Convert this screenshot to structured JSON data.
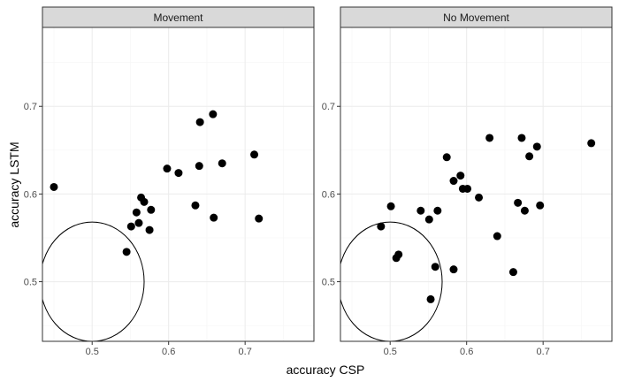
{
  "chart_data": {
    "type": "scatter",
    "xlabel": "accuracy CSP",
    "ylabel": "accuracy LSTM",
    "xlim": [
      0.435,
      0.79
    ],
    "ylim": [
      0.432,
      0.79
    ],
    "xticks": [
      0.5,
      0.6,
      0.7
    ],
    "yticks": [
      0.5,
      0.6,
      0.7
    ],
    "tick_labels": [
      "0.5",
      "0.6",
      "0.7"
    ],
    "grid": true,
    "facets": [
      {
        "label": "Movement",
        "points": [
          {
            "x": 0.45,
            "y": 0.608
          },
          {
            "x": 0.545,
            "y": 0.534
          },
          {
            "x": 0.551,
            "y": 0.563
          },
          {
            "x": 0.558,
            "y": 0.579
          },
          {
            "x": 0.561,
            "y": 0.567
          },
          {
            "x": 0.564,
            "y": 0.596
          },
          {
            "x": 0.568,
            "y": 0.591
          },
          {
            "x": 0.575,
            "y": 0.559
          },
          {
            "x": 0.577,
            "y": 0.582
          },
          {
            "x": 0.598,
            "y": 0.629
          },
          {
            "x": 0.613,
            "y": 0.624
          },
          {
            "x": 0.635,
            "y": 0.587
          },
          {
            "x": 0.64,
            "y": 0.632
          },
          {
            "x": 0.641,
            "y": 0.682
          },
          {
            "x": 0.658,
            "y": 0.691
          },
          {
            "x": 0.659,
            "y": 0.573
          },
          {
            "x": 0.67,
            "y": 0.635
          },
          {
            "x": 0.712,
            "y": 0.645
          },
          {
            "x": 0.718,
            "y": 0.572
          }
        ]
      },
      {
        "label": "No Movement",
        "points": [
          {
            "x": 0.488,
            "y": 0.563
          },
          {
            "x": 0.501,
            "y": 0.586
          },
          {
            "x": 0.508,
            "y": 0.527
          },
          {
            "x": 0.511,
            "y": 0.531
          },
          {
            "x": 0.54,
            "y": 0.581
          },
          {
            "x": 0.551,
            "y": 0.571
          },
          {
            "x": 0.553,
            "y": 0.48
          },
          {
            "x": 0.559,
            "y": 0.517
          },
          {
            "x": 0.562,
            "y": 0.581
          },
          {
            "x": 0.574,
            "y": 0.642
          },
          {
            "x": 0.583,
            "y": 0.615
          },
          {
            "x": 0.583,
            "y": 0.514
          },
          {
            "x": 0.592,
            "y": 0.621
          },
          {
            "x": 0.595,
            "y": 0.606
          },
          {
            "x": 0.601,
            "y": 0.606
          },
          {
            "x": 0.616,
            "y": 0.596
          },
          {
            "x": 0.63,
            "y": 0.664
          },
          {
            "x": 0.64,
            "y": 0.552
          },
          {
            "x": 0.661,
            "y": 0.511
          },
          {
            "x": 0.667,
            "y": 0.59
          },
          {
            "x": 0.672,
            "y": 0.664
          },
          {
            "x": 0.676,
            "y": 0.581
          },
          {
            "x": 0.682,
            "y": 0.643
          },
          {
            "x": 0.692,
            "y": 0.654
          },
          {
            "x": 0.696,
            "y": 0.587
          },
          {
            "x": 0.763,
            "y": 0.658
          }
        ]
      }
    ],
    "reference_circle": {
      "cx": 0.5,
      "cy": 0.5,
      "radius": 0.068
    },
    "colors": {
      "point": "#000000",
      "strip_fill": "#d9d9d9",
      "grid_major": "#ebebeb",
      "grid_minor": "#f5f5f5",
      "panel_border": "#333333"
    }
  }
}
